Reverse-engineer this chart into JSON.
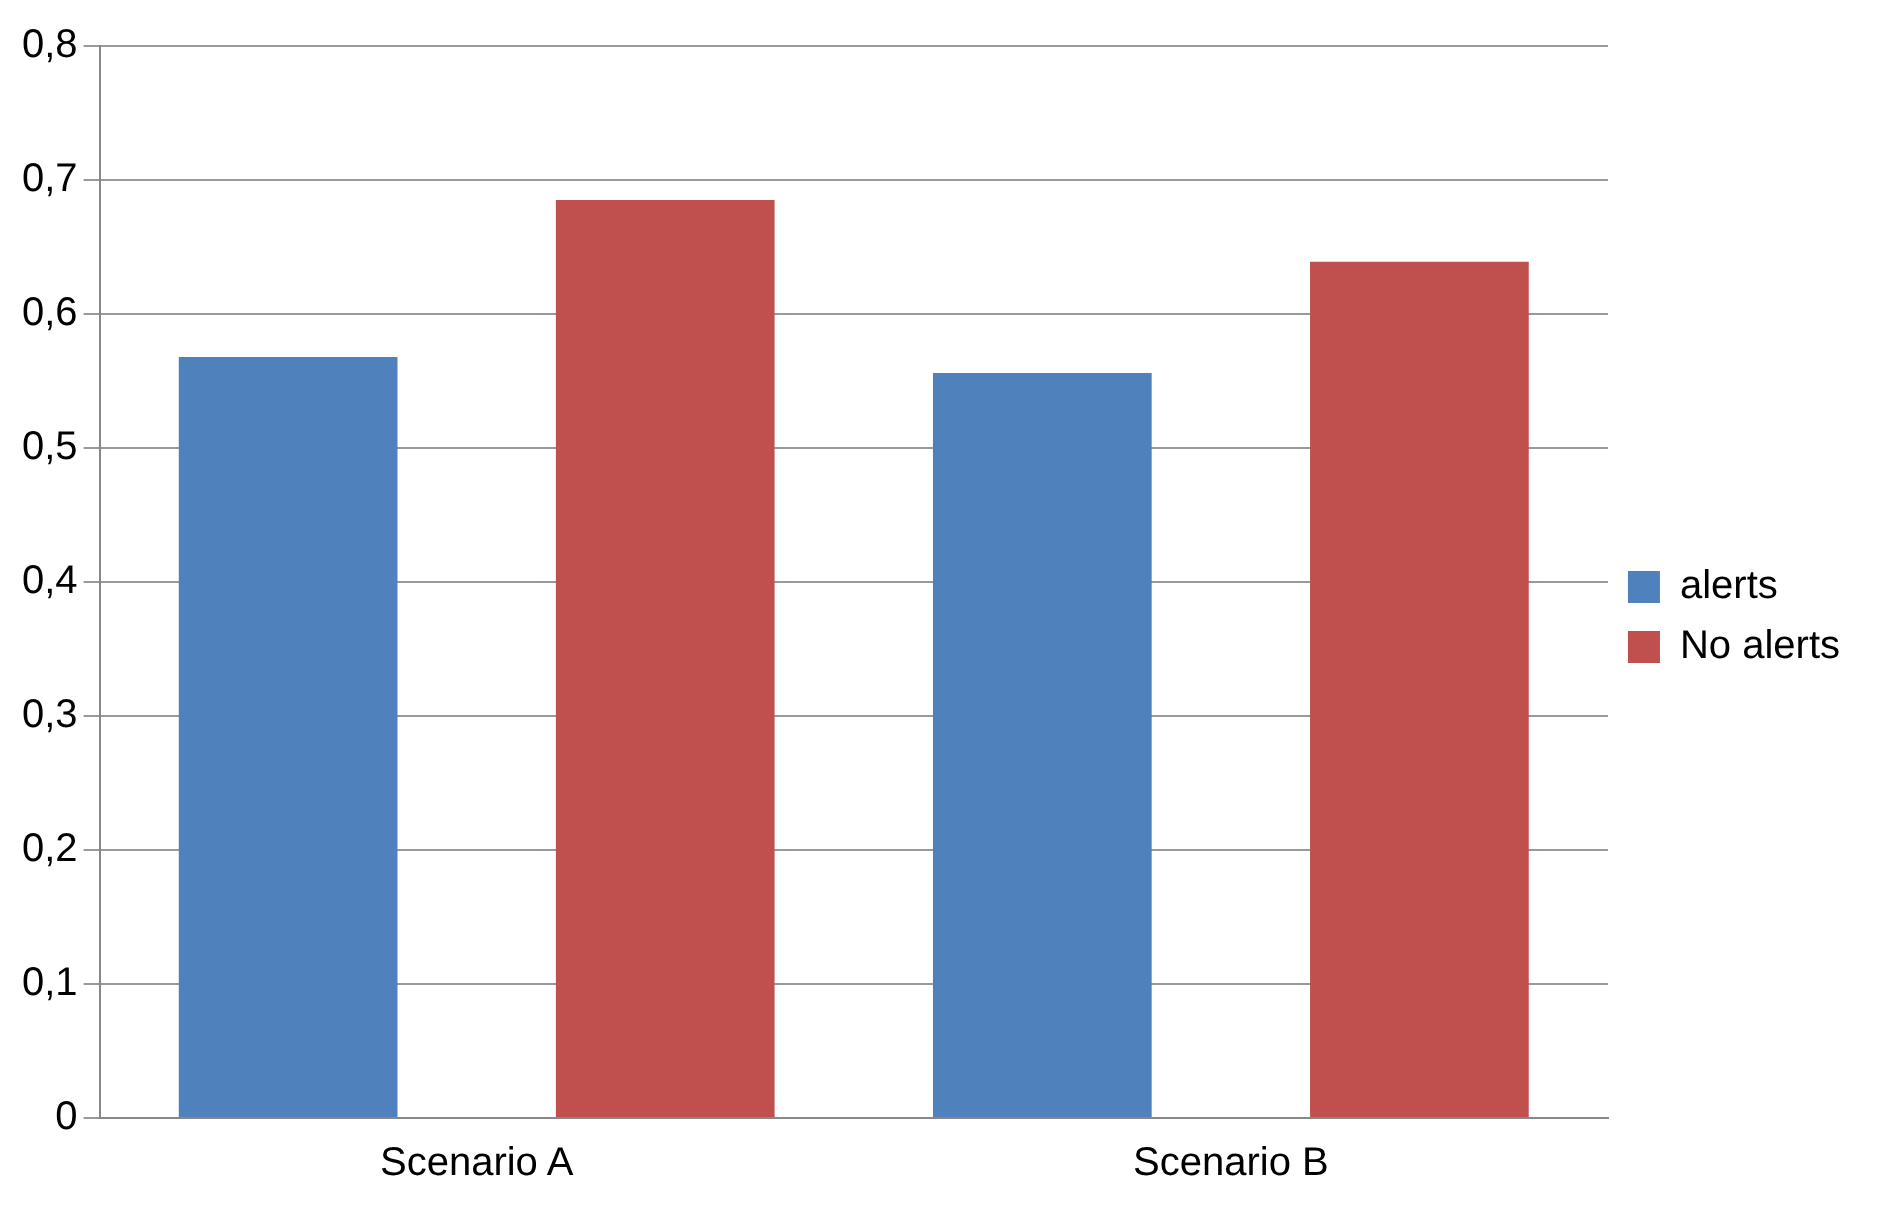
{
  "chart_data": {
    "type": "bar",
    "categories": [
      "Scenario A",
      "Scenario B"
    ],
    "series": [
      {
        "name": "alerts",
        "color": "#4f81bd",
        "values": [
          0.568,
          0.556
        ]
      },
      {
        "name": "No alerts",
        "color": "#c0504d",
        "values": [
          0.685,
          0.639
        ]
      }
    ],
    "ylim": [
      0,
      0.8
    ],
    "yticks": [
      0,
      {
        "value": 0.1,
        "label": "0,1"
      },
      {
        "value": 0.2,
        "label": "0,2"
      },
      {
        "value": 0.3,
        "label": "0,3"
      },
      {
        "value": 0.4,
        "label": "0,4"
      },
      {
        "value": 0.5,
        "label": "0,5"
      },
      {
        "value": 0.6,
        "label": "0,6"
      },
      {
        "value": 0.7,
        "label": "0,7"
      },
      {
        "value": 0.8,
        "label": "0,8"
      }
    ],
    "grid": "y",
    "legend": "right"
  }
}
